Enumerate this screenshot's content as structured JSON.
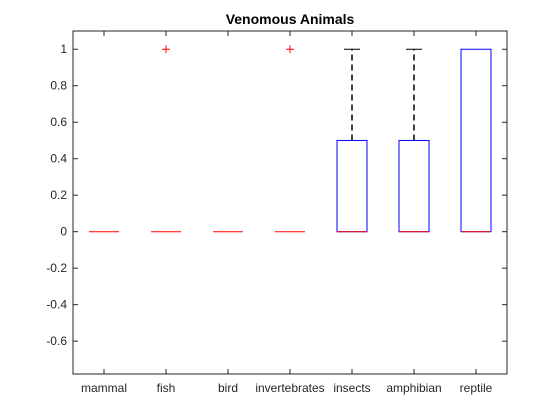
{
  "chart_data": {
    "type": "boxplot",
    "title": "Venomous Animals",
    "xlabel": "",
    "ylabel": "",
    "ylim": [
      -0.78,
      1.1
    ],
    "yticks": [
      -0.6,
      -0.4,
      -0.2,
      0,
      0.2,
      0.4,
      0.6,
      0.8,
      1
    ],
    "ytick_labels": [
      "-0.6",
      "-0.4",
      "-0.2",
      "0",
      "0.2",
      "0.4",
      "0.6",
      "0.8",
      "1"
    ],
    "categories": [
      "mammal",
      "fish",
      "bird",
      "invertebrates",
      "insects",
      "amphibian",
      "reptile"
    ],
    "boxes": [
      {
        "category": "mammal",
        "q1": 0,
        "median": 0,
        "q3": 0,
        "whisker_low": 0,
        "whisker_high": 0,
        "outliers": []
      },
      {
        "category": "fish",
        "q1": 0,
        "median": 0,
        "q3": 0,
        "whisker_low": 0,
        "whisker_high": 0,
        "outliers": [
          1
        ]
      },
      {
        "category": "bird",
        "q1": 0,
        "median": 0,
        "q3": 0,
        "whisker_low": 0,
        "whisker_high": 0,
        "outliers": []
      },
      {
        "category": "invertebrates",
        "q1": 0,
        "median": 0,
        "q3": 0,
        "whisker_low": 0,
        "whisker_high": 0,
        "outliers": [
          1
        ]
      },
      {
        "category": "insects",
        "q1": 0,
        "median": 0,
        "q3": 0.5,
        "whisker_low": 0,
        "whisker_high": 1,
        "outliers": []
      },
      {
        "category": "amphibian",
        "q1": 0,
        "median": 0,
        "q3": 0.5,
        "whisker_low": 0,
        "whisker_high": 1,
        "outliers": []
      },
      {
        "category": "reptile",
        "q1": 0,
        "median": 0,
        "q3": 1,
        "whisker_low": 0,
        "whisker_high": 1,
        "outliers": []
      }
    ],
    "colors": {
      "box": "#0000ff",
      "median": "#ff0000",
      "whisker": "#000000",
      "outlier": "#ff0000",
      "axis": "#262626"
    },
    "grid": false
  }
}
